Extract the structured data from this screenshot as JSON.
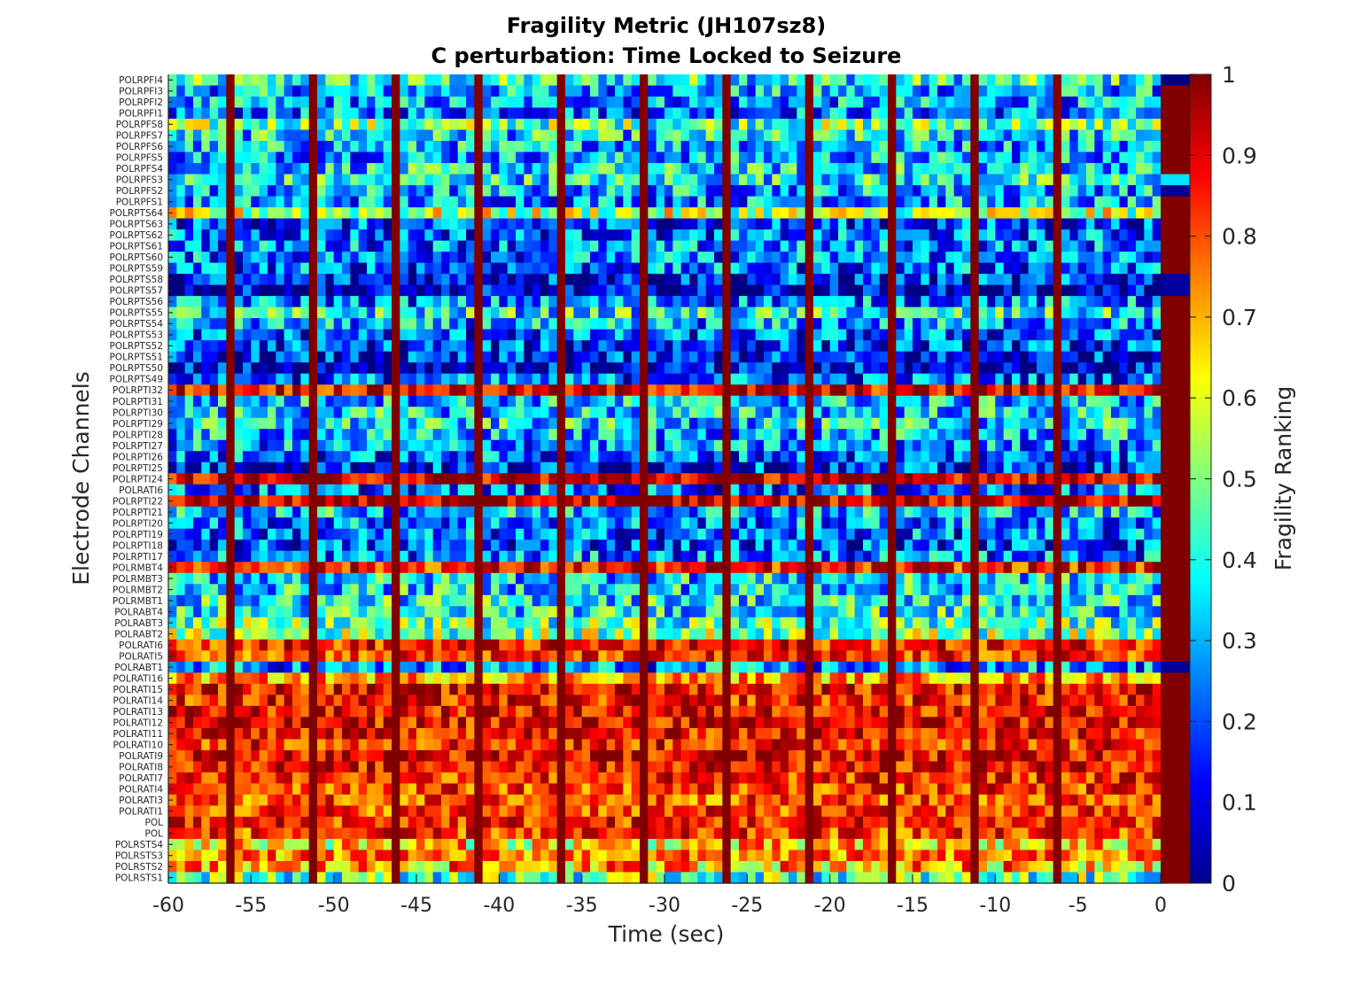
{
  "chart_data": {
    "type": "heatmap",
    "title": "Fragility Metric (JH107sz8)",
    "subtitle": "C perturbation:  Time Locked to Seizure",
    "xlabel": "Time (sec)",
    "ylabel": "Electrode Channels",
    "colorbar_label": "Fragility Ranking",
    "colormap": "jet",
    "xlim": [
      -60,
      0
    ],
    "clim": [
      0,
      1
    ],
    "x_ticks": [
      -60,
      -55,
      -50,
      -45,
      -40,
      -35,
      -30,
      -25,
      -20,
      -15,
      -10,
      -5,
      0
    ],
    "colorbar_ticks": [
      0,
      0.1,
      0.2,
      0.3,
      0.4,
      0.5,
      0.6,
      0.7,
      0.8,
      0.9,
      1
    ],
    "channels": [
      "POLRPFI4",
      "POLRPFI3",
      "POLRPFI2",
      "POLRPFI1",
      "POLRPFS8",
      "POLRPFS7",
      "POLRPFS6",
      "POLRPFS5",
      "POLRPFS4",
      "POLRPFS3",
      "POLRPFS2",
      "POLRPFS1",
      "POLRPTS64",
      "POLRPTS63",
      "POLRPTS62",
      "POLRPTS61",
      "POLRPTS60",
      "POLRPTS59",
      "POLRPTS58",
      "POLRPTS57",
      "POLRPTS56",
      "POLRPTS55",
      "POLRPTS54",
      "POLRPTS53",
      "POLRPTS52",
      "POLRPTS51",
      "POLRPTS50",
      "POLRPTS49",
      "POLRPTI32",
      "POLRPTI31",
      "POLRPTI30",
      "POLRPTI29",
      "POLRPTI28",
      "POLRPTI27",
      "POLRPTI26",
      "POLRPTI25",
      "POLRPTI24",
      "POLRATI6",
      "POLRPTI22",
      "POLRPTI21",
      "POLRPTI20",
      "POLRPTI19",
      "POLRPTI18",
      "POLRPTI17",
      "POLRMBT4",
      "POLRMBT3",
      "POLRMBT2",
      "POLRMBT1",
      "POLRABT4",
      "POLRABT3",
      "POLRABT2",
      "POLRATI6",
      "POLRATI5",
      "POLRABT1",
      "POLRATI16",
      "POLRATI15",
      "POLRATI14",
      "POLRATI13",
      "POLRATI12",
      "POLRATI11",
      "POLRATI10",
      "POLRATI9",
      "POLRATI8",
      "POLRATI7",
      "POLRATI4",
      "POLRATI3",
      "POLRATI1",
      "POL",
      "POL",
      "POLRSTS4",
      "POLRSTS3",
      "POLRSTS2",
      "POLRSTS1"
    ],
    "num_windows": 120,
    "window_step_sec": 0.5,
    "channel_mean_fragility": [
      0.4,
      0.3,
      0.28,
      0.25,
      0.48,
      0.35,
      0.32,
      0.3,
      0.35,
      0.38,
      0.3,
      0.28,
      0.55,
      0.18,
      0.22,
      0.25,
      0.25,
      0.22,
      0.15,
      0.05,
      0.25,
      0.38,
      0.28,
      0.2,
      0.17,
      0.12,
      0.08,
      0.22,
      0.88,
      0.32,
      0.34,
      0.35,
      0.3,
      0.27,
      0.22,
      0.15,
      0.92,
      0.22,
      0.92,
      0.32,
      0.25,
      0.22,
      0.2,
      0.25,
      0.85,
      0.35,
      0.35,
      0.38,
      0.38,
      0.45,
      0.5,
      0.85,
      0.82,
      0.25,
      0.72,
      0.88,
      0.85,
      0.88,
      0.88,
      0.87,
      0.85,
      0.9,
      0.88,
      0.84,
      0.82,
      0.8,
      0.82,
      0.85,
      0.82,
      0.65,
      0.75,
      0.7,
      0.45
    ],
    "artifact_columns_sec": [
      -56.5,
      -51.5,
      -46.5,
      -41.5,
      -36.5,
      -31.5,
      -26.5,
      -21.5,
      -16.5,
      -11.5,
      -6.5
    ],
    "artifact_value": 1.0,
    "last_column_values": [
      0.0,
      1,
      1,
      1,
      1,
      1,
      1,
      1,
      1,
      0.35,
      0.02,
      1,
      1,
      1,
      1,
      1,
      1,
      1,
      0.03,
      0.03,
      1,
      1,
      1,
      1,
      1,
      1,
      1,
      1,
      1,
      1,
      1,
      1,
      1,
      1,
      1,
      1,
      1,
      1,
      1,
      1,
      1,
      1,
      1,
      1,
      1,
      1,
      1,
      1,
      1,
      1,
      1,
      1,
      1,
      0.02,
      1,
      1,
      1,
      1,
      1,
      1,
      1,
      1,
      1,
      1,
      1,
      1,
      1,
      1,
      1,
      1,
      1,
      1,
      1
    ]
  }
}
